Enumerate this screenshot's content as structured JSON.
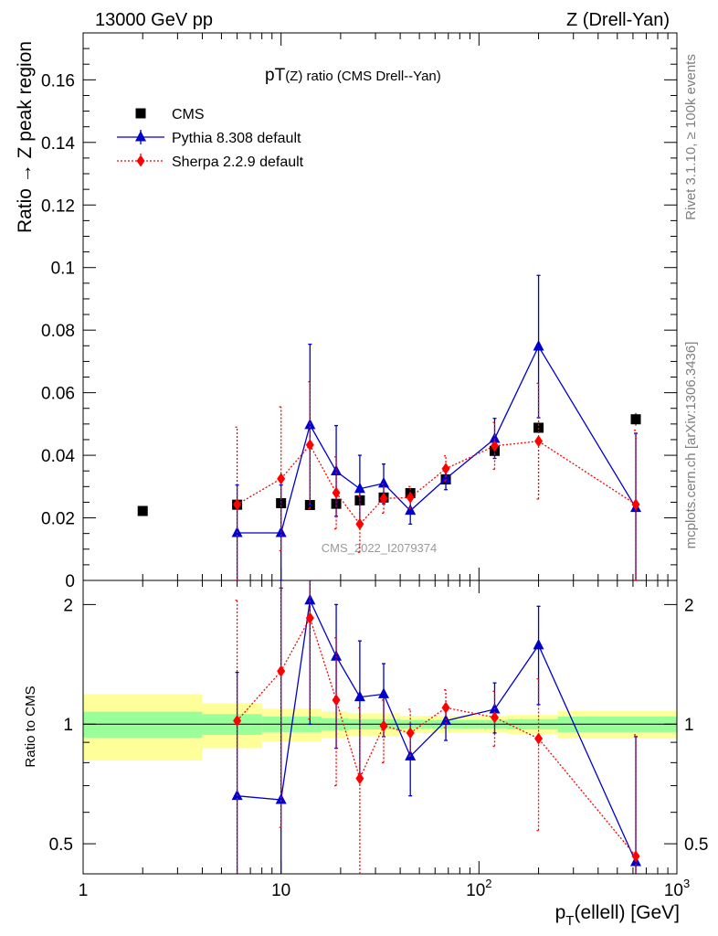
{
  "header": {
    "left": "13000 GeV pp",
    "right": "Z (Drell-Yan)"
  },
  "side_labels": {
    "rivet": "Rivet 3.1.10, ≥ 100k events",
    "mcplots": "mcplots.cern.ch [arXiv:1306.3436]"
  },
  "colors": {
    "data": "#000000",
    "pythia": "#0000cc",
    "sherpa": "#ff0000",
    "band_inner": "#99ff99",
    "band_outer": "#ffff99"
  },
  "chart_data": {
    "type": "line",
    "title": "pT(Z) ratio (CMS Drell--Yan)",
    "title_main": "pT",
    "title_rest": "(Z) ratio (CMS Drell--Yan)",
    "watermark": "CMS_2022_I2079374",
    "xlabel": "p",
    "xlabel_sub": "T",
    "xlabel_rest": "(ellell) [GeV]",
    "x_log": true,
    "xlim": [
      1,
      1000
    ],
    "x_ticks": [
      {
        "value": 1,
        "label": "1"
      },
      {
        "value": 10,
        "label": "10"
      },
      {
        "value": 100,
        "label": "10",
        "sup": "2"
      },
      {
        "value": 1000,
        "label": "10",
        "sup": "3"
      }
    ],
    "main": {
      "ylabel": "Ratio → Z peak region",
      "ylim": [
        0,
        0.175
      ],
      "y_ticks": [
        {
          "value": 0,
          "label": "0"
        },
        {
          "value": 0.02,
          "label": "0.02"
        },
        {
          "value": 0.04,
          "label": "0.04"
        },
        {
          "value": 0.06,
          "label": "0.06"
        },
        {
          "value": 0.08,
          "label": "0.08"
        },
        {
          "value": 0.1,
          "label": "0.1"
        },
        {
          "value": 0.12,
          "label": "0.12"
        },
        {
          "value": 0.14,
          "label": "0.14"
        },
        {
          "value": 0.16,
          "label": "0.16"
        }
      ],
      "series": [
        {
          "name": "CMS",
          "style": "data",
          "points": [
            {
              "x": 2,
              "y": 0.0222,
              "err": 0.0005
            },
            {
              "x": 6,
              "y": 0.0242,
              "err": 0.0008
            },
            {
              "x": 10,
              "y": 0.0247,
              "err": 0.0008
            },
            {
              "x": 14,
              "y": 0.0241,
              "err": 0.0007
            },
            {
              "x": 19,
              "y": 0.0245,
              "err": 0.0007
            },
            {
              "x": 25,
              "y": 0.0256,
              "err": 0.0007
            },
            {
              "x": 33,
              "y": 0.0265,
              "err": 0.0007
            },
            {
              "x": 45,
              "y": 0.0279,
              "err": 0.0007
            },
            {
              "x": 68,
              "y": 0.0323,
              "err": 0.0008
            },
            {
              "x": 120,
              "y": 0.0414,
              "err": 0.0012
            },
            {
              "x": 200,
              "y": 0.0488,
              "err": 0.0015
            },
            {
              "x": 620,
              "y": 0.0515,
              "err": 0.002
            }
          ]
        },
        {
          "name": "Pythia 8.308 default",
          "style": "pythia",
          "steps": [
            {
              "x0": 5,
              "x1": 7,
              "y": 0.0152
            },
            {
              "x0": 7,
              "x1": 12,
              "y": 0.0152
            }
          ],
          "points": [
            {
              "x": 6,
              "y": 0.0152,
              "lo": 0.0,
              "hi": 0.0305
            },
            {
              "x": 10,
              "y": 0.0152,
              "lo": 0.0,
              "hi": 0.0305
            },
            {
              "x": 14,
              "y": 0.0497,
              "lo": 0.024,
              "hi": 0.0755
            },
            {
              "x": 19,
              "y": 0.0349,
              "lo": 0.0205,
              "hi": 0.0495
            },
            {
              "x": 25,
              "y": 0.0293,
              "lo": 0.0185,
              "hi": 0.04
            },
            {
              "x": 33,
              "y": 0.031,
              "lo": 0.0245,
              "hi": 0.0372
            },
            {
              "x": 45,
              "y": 0.0223,
              "lo": 0.018,
              "hi": 0.0268
            },
            {
              "x": 68,
              "y": 0.0325,
              "lo": 0.029,
              "hi": 0.036
            },
            {
              "x": 120,
              "y": 0.0453,
              "lo": 0.039,
              "hi": 0.0518
            },
            {
              "x": 200,
              "y": 0.0748,
              "lo": 0.052,
              "hi": 0.0975
            },
            {
              "x": 620,
              "y": 0.0232,
              "lo": 0.0,
              "hi": 0.047
            }
          ]
        },
        {
          "name": "Sherpa 2.2.9 default",
          "style": "sherpa",
          "points": [
            {
              "x": 6,
              "y": 0.0243,
              "lo": 0.0,
              "hi": 0.049
            },
            {
              "x": 10,
              "y": 0.0325,
              "lo": 0.0095,
              "hi": 0.0555
            },
            {
              "x": 14,
              "y": 0.0433,
              "lo": 0.023,
              "hi": 0.0635
            },
            {
              "x": 19,
              "y": 0.028,
              "lo": 0.0165,
              "hi": 0.0395
            },
            {
              "x": 25,
              "y": 0.018,
              "lo": 0.009,
              "hi": 0.027
            },
            {
              "x": 33,
              "y": 0.0262,
              "lo": 0.0215,
              "hi": 0.0308
            },
            {
              "x": 45,
              "y": 0.0265,
              "lo": 0.023,
              "hi": 0.03
            },
            {
              "x": 68,
              "y": 0.0357,
              "lo": 0.0318,
              "hi": 0.0398
            },
            {
              "x": 120,
              "y": 0.043,
              "lo": 0.0355,
              "hi": 0.0505
            },
            {
              "x": 200,
              "y": 0.0445,
              "lo": 0.026,
              "hi": 0.063
            },
            {
              "x": 620,
              "y": 0.0243,
              "lo": 0.0,
              "hi": 0.048
            }
          ]
        }
      ],
      "legend": [
        {
          "label": "CMS",
          "style": "data"
        },
        {
          "label": "Pythia 8.308 default",
          "style": "pythia"
        },
        {
          "label": "Sherpa 2.2.9 default",
          "style": "sherpa"
        }
      ]
    },
    "ratio": {
      "ylabel": "Ratio to CMS",
      "y_log": true,
      "ylim": [
        0.42,
        2.3
      ],
      "y_ticks": [
        {
          "value": 0.5,
          "label": "0.5"
        },
        {
          "value": 1,
          "label": "1"
        },
        {
          "value": 2,
          "label": "2"
        }
      ],
      "band": [
        {
          "x0": 1,
          "x1": 4,
          "inner": 0.075,
          "outer": 0.19
        },
        {
          "x0": 4,
          "x1": 8,
          "inner": 0.06,
          "outer": 0.13
        },
        {
          "x0": 8,
          "x1": 16,
          "inner": 0.045,
          "outer": 0.095
        },
        {
          "x0": 16,
          "x1": 22,
          "inner": 0.035,
          "outer": 0.075
        },
        {
          "x0": 22,
          "x1": 40,
          "inner": 0.03,
          "outer": 0.065
        },
        {
          "x0": 40,
          "x1": 100,
          "inner": 0.025,
          "outer": 0.05
        },
        {
          "x0": 100,
          "x1": 140,
          "inner": 0.025,
          "outer": 0.05
        },
        {
          "x0": 140,
          "x1": 250,
          "inner": 0.03,
          "outer": 0.055
        },
        {
          "x0": 250,
          "x1": 1000,
          "inner": 0.045,
          "outer": 0.08
        }
      ],
      "series": [
        {
          "name": "Pythia 8.308 default",
          "style": "pythia",
          "points": [
            {
              "x": 6,
              "y": 0.66,
              "lo": 0.38,
              "hi": 1.35
            },
            {
              "x": 10,
              "y": 0.645,
              "lo": 0.38,
              "hi": 2.2
            },
            {
              "x": 14,
              "y": 2.05,
              "lo": 1.0,
              "hi": 2.3
            },
            {
              "x": 19,
              "y": 1.48,
              "lo": 0.87,
              "hi": 2.0
            },
            {
              "x": 25,
              "y": 1.17,
              "lo": 0.75,
              "hi": 1.62
            },
            {
              "x": 33,
              "y": 1.19,
              "lo": 0.93,
              "hi": 1.42
            },
            {
              "x": 45,
              "y": 0.83,
              "lo": 0.66,
              "hi": 1.0
            },
            {
              "x": 68,
              "y": 1.02,
              "lo": 0.91,
              "hi": 1.12
            },
            {
              "x": 120,
              "y": 1.09,
              "lo": 0.95,
              "hi": 1.27
            },
            {
              "x": 200,
              "y": 1.58,
              "lo": 1.12,
              "hi": 1.98
            },
            {
              "x": 620,
              "y": 0.45,
              "lo": 0.38,
              "hi": 0.93
            }
          ]
        },
        {
          "name": "Sherpa 2.2.9 default",
          "style": "sherpa",
          "points": [
            {
              "x": 6,
              "y": 1.02,
              "lo": 0.38,
              "hi": 2.05
            },
            {
              "x": 10,
              "y": 1.36,
              "lo": 0.55,
              "hi": 2.2
            },
            {
              "x": 14,
              "y": 1.85,
              "lo": 1.03,
              "hi": 2.3
            },
            {
              "x": 19,
              "y": 1.15,
              "lo": 0.7,
              "hi": 1.65
            },
            {
              "x": 25,
              "y": 0.73,
              "lo": 0.37,
              "hi": 1.1
            },
            {
              "x": 33,
              "y": 0.99,
              "lo": 0.8,
              "hi": 1.15
            },
            {
              "x": 45,
              "y": 0.95,
              "lo": 0.83,
              "hi": 1.09
            },
            {
              "x": 68,
              "y": 1.1,
              "lo": 0.98,
              "hi": 1.22
            },
            {
              "x": 120,
              "y": 1.04,
              "lo": 0.88,
              "hi": 1.21
            },
            {
              "x": 200,
              "y": 0.92,
              "lo": 0.54,
              "hi": 1.3
            },
            {
              "x": 620,
              "y": 0.465,
              "lo": 0.38,
              "hi": 0.94
            }
          ]
        }
      ]
    }
  }
}
